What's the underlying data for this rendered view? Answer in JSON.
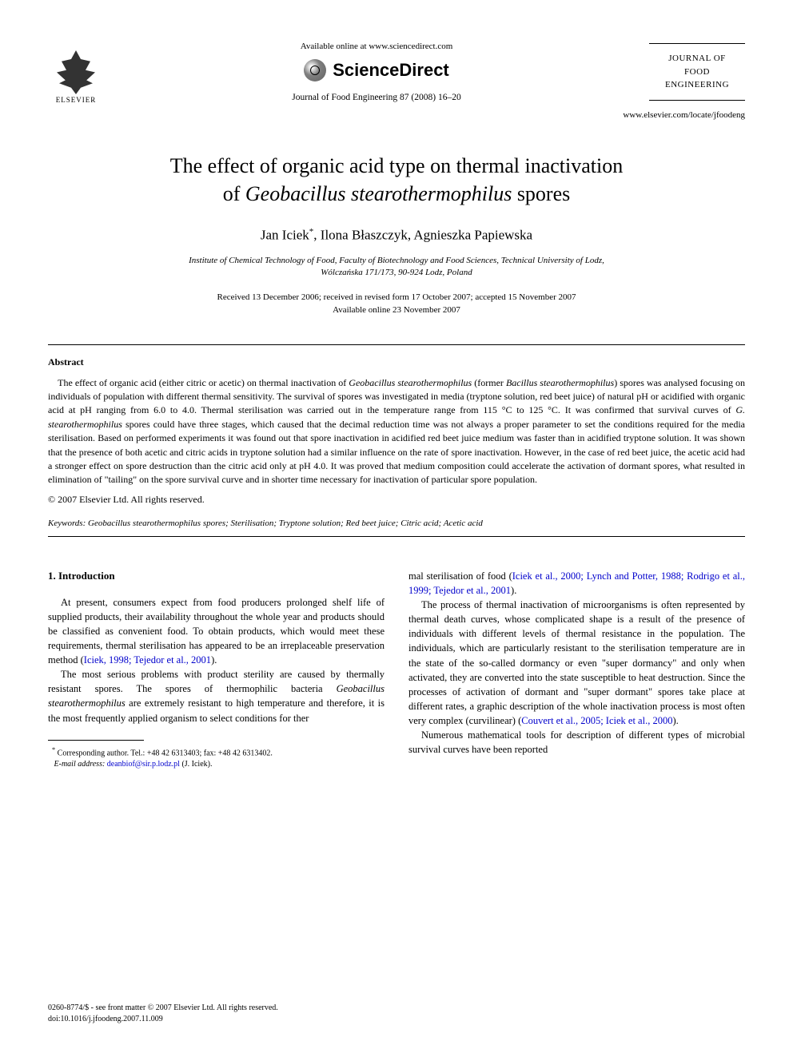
{
  "header": {
    "publisher": "ELSEVIER",
    "available_online": "Available online at www.sciencedirect.com",
    "sciencedirect": "ScienceDirect",
    "journal_ref": "Journal of Food Engineering 87 (2008) 16–20",
    "journal_cover_line1": "JOURNAL OF",
    "journal_cover_line2": "FOOD",
    "journal_cover_line3": "ENGINEERING",
    "journal_url": "www.elsevier.com/locate/jfoodeng"
  },
  "title": {
    "line1": "The effect of organic acid type on thermal inactivation",
    "line2_pre": "of ",
    "line2_italic": "Geobacillus stearothermophilus",
    "line2_post": " spores"
  },
  "authors": {
    "a1": "Jan Iciek",
    "sup": "*",
    "a2": ", Ilona Błaszczyk, Agnieszka Papiewska"
  },
  "affiliation": {
    "line1": "Institute of Chemical Technology of Food, Faculty of Biotechnology and Food Sciences, Technical University of Lodz,",
    "line2": "Wólczańska 171/173, 90-924 Lodz, Poland"
  },
  "dates": {
    "line1": "Received 13 December 2006; received in revised form 17 October 2007; accepted 15 November 2007",
    "line2": "Available online 23 November 2007"
  },
  "abstract": {
    "header": "Abstract",
    "p1_pre": "The effect of organic acid (either citric or acetic) on thermal inactivation of ",
    "p1_i1": "Geobacillus stearothermophilus",
    "p1_mid1": " (former ",
    "p1_i2": "Bacillus stearothermophilus",
    "p1_mid2": ") spores was analysed focusing on individuals of population with different thermal sensitivity. The survival of spores was investigated in media (tryptone solution, red beet juice) of natural pH or acidified with organic acid at pH ranging from 6.0 to 4.0. Thermal sterilisation was carried out in the temperature range from 115 °C to 125 °C. It was confirmed that survival curves of ",
    "p1_i3": "G. stearothermophilus",
    "p1_mid3": " spores could have three stages, which caused that the decimal reduction time was not always a proper parameter to set the conditions required for the media sterilisation. Based on performed experiments it was found out that spore inactivation in acidified red beet juice medium was faster than in acidified tryptone solution. It was shown that the presence of both acetic and citric acids in tryptone solution had a similar influence on the rate of spore inactivation. However, in the case of red beet juice, the acetic acid had a stronger effect on spore destruction than the citric acid only at pH 4.0. It was proved that medium composition could accelerate the activation of dormant spores, what resulted in elimination of \"tailing\" on the spore survival curve and in shorter time necessary for inactivation of particular spore population.",
    "copyright": "© 2007 Elsevier Ltd. All rights reserved."
  },
  "keywords": {
    "label": "Keywords: ",
    "i1": "Geobacillus stearothermophilus",
    "rest": " spores; Sterilisation; Tryptone solution; Red beet juice; Citric acid; Acetic acid"
  },
  "intro": {
    "header": "1. Introduction",
    "p1_text": "At present, consumers expect from food producers prolonged shelf life of supplied products, their availability throughout the whole year and products should be classified as convenient food. To obtain products, which would meet these requirements, thermal sterilisation has appeared to be an irreplaceable preservation method (",
    "p1_ref": "Iciek, 1998; Tejedor et al., 2001",
    "p1_end": ").",
    "p2_pre": "The most serious problems with product sterility are caused by thermally resistant spores. The spores of thermophilic bacteria ",
    "p2_i": "Geobacillus stearothermophilus",
    "p2_mid": " are extremely resistant to high temperature and therefore, it is the most frequently applied organism to select conditions for ther",
    "p2_cont": "mal sterilisation of food (",
    "p2_ref": "Iciek et al., 2000; Lynch and Potter, 1988; Rodrigo et al., 1999; Tejedor et al., 2001",
    "p2_end": ").",
    "p3_text": "The process of thermal inactivation of microorganisms is often represented by thermal death curves, whose complicated shape is a result of the presence of individuals with different levels of thermal resistance in the population. The individuals, which are particularly resistant to the sterilisation temperature are in the state of the so-called dormancy or even \"super dormancy\" and only when activated, they are converted into the state susceptible to heat destruction. Since the processes of activation of dormant and \"super dormant\" spores take place at different rates, a graphic description of the whole inactivation process is most often very complex (curvilinear) (",
    "p3_ref": "Couvert et al., 2005; Iciek et al., 2000",
    "p3_end": ").",
    "p4_text": "Numerous mathematical tools for description of different types of microbial survival curves have been reported"
  },
  "footnote": {
    "corr_label": "Corresponding author. Tel.: +48 42 6313403; fax: +48 42 6313402.",
    "email_label": "E-mail address:",
    "email": " deanbiof@sir.p.lodz.pl ",
    "email_name": "(J. Iciek)."
  },
  "footer": {
    "line1": "0260-8774/$ - see front matter © 2007 Elsevier Ltd. All rights reserved.",
    "line2": "doi:10.1016/j.jfoodeng.2007.11.009"
  }
}
